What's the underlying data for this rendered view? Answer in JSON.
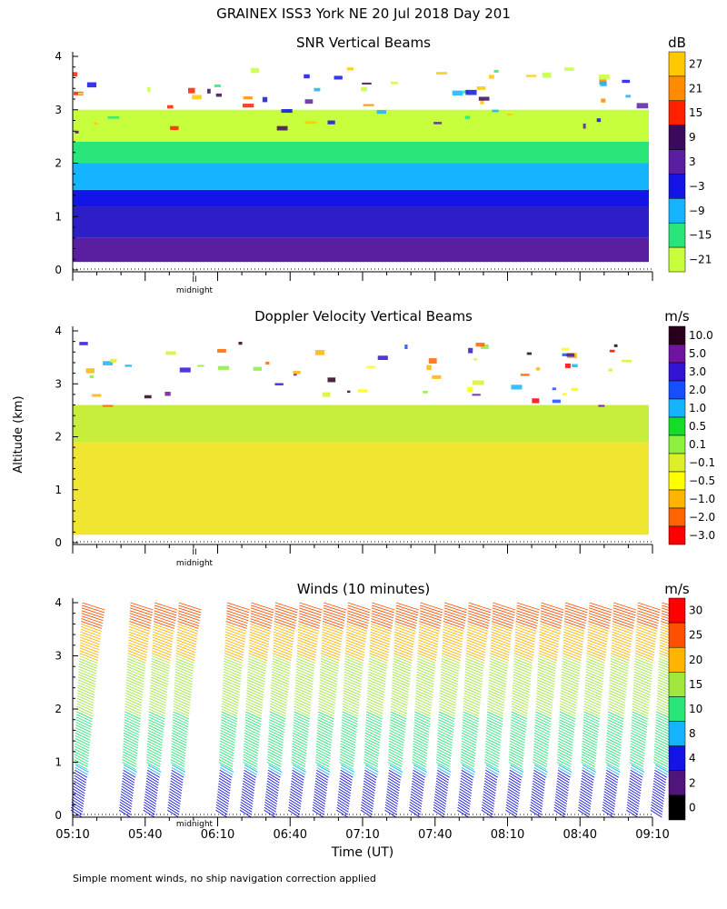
{
  "figure": {
    "title": "GRAINEX ISS3 York NE  20 Jul 2018 Day 201",
    "ylabel": "Altitude (km)",
    "xlabel": "Time (UT)",
    "footnote": "Simple moment winds, no ship navigation correction applied",
    "midnight_label": "midnight",
    "midnight_marker": "II"
  },
  "chart_data": [
    {
      "type": "heatmap",
      "title": "SNR Vertical Beams",
      "ylim": [
        0,
        4
      ],
      "y_ticks": [
        "0",
        "1",
        "2",
        "3",
        "4"
      ],
      "xlim": [
        "05:10",
        "09:10"
      ],
      "colorbar": {
        "unit": "dB",
        "labels": [
          "27",
          "21",
          "15",
          "9",
          "3",
          "−3",
          "−9",
          "−15",
          "−21"
        ],
        "colors": [
          "#ffc800",
          "#ff8c00",
          "#ff2000",
          "#3c0a5a",
          "#5a1ea0",
          "#1414e6",
          "#14b4ff",
          "#28e67a",
          "#c8ff3c"
        ]
      },
      "layers": [
        {
          "from_km": 0.15,
          "to_km": 0.6,
          "level": "9",
          "color": "#5a1ea0"
        },
        {
          "from_km": 0.6,
          "to_km": 1.2,
          "level": "3",
          "color": "#2d1ec8"
        },
        {
          "from_km": 1.2,
          "to_km": 1.5,
          "level": "-3",
          "color": "#1414e6"
        },
        {
          "from_km": 1.5,
          "to_km": 2.0,
          "level": "-9",
          "color": "#14b4ff"
        },
        {
          "from_km": 2.0,
          "to_km": 2.4,
          "level": "-15",
          "color": "#28e67a"
        },
        {
          "from_km": 2.4,
          "to_km": 3.0,
          "level": "-21",
          "color": "#c8ff3c"
        }
      ]
    },
    {
      "type": "heatmap",
      "title": "Doppler Velocity Vertical Beams",
      "ylim": [
        0,
        4
      ],
      "y_ticks": [
        "0",
        "1",
        "2",
        "3",
        "4"
      ],
      "xlim": [
        "05:10",
        "09:10"
      ],
      "colorbar": {
        "unit": "m/s",
        "labels": [
          "10.0",
          "5.0",
          "3.0",
          "2.0",
          "1.0",
          "0.5",
          "0.1",
          "−0.1",
          "−0.5",
          "−1.0",
          "−2.0",
          "−3.0"
        ],
        "colors": [
          "#28001e",
          "#6e14a0",
          "#3214d2",
          "#1450ff",
          "#14b4ff",
          "#14dc28",
          "#8cf03c",
          "#dcf028",
          "#ffff00",
          "#ffb400",
          "#ff6400",
          "#ff0000"
        ]
      },
      "layers": [
        {
          "from_km": 0.15,
          "to_km": 1.9,
          "level": "-0.1",
          "color": "#f0e632"
        },
        {
          "from_km": 1.9,
          "to_km": 2.6,
          "level": "0.1",
          "color": "#c8ee3c"
        }
      ]
    },
    {
      "type": "scatter",
      "title": "Winds (10 minutes)",
      "ylim": [
        0,
        4
      ],
      "y_ticks": [
        "0",
        "1",
        "2",
        "3",
        "4"
      ],
      "x_ticks": [
        "05:10",
        "05:40",
        "06:10",
        "06:40",
        "07:10",
        "07:40",
        "08:10",
        "08:40",
        "09:10"
      ],
      "colorbar": {
        "unit": "m/s",
        "labels": [
          "30",
          "25",
          "20",
          "15",
          "10",
          "8",
          "4",
          "2",
          "0"
        ],
        "colors": [
          "#ff0000",
          "#ff5000",
          "#ffb400",
          "#a0e63c",
          "#28e678",
          "#14b4ff",
          "#1414e6",
          "#50147a",
          "#000000"
        ]
      },
      "profiles_minutes": [
        2,
        22,
        32,
        42,
        62,
        72,
        82,
        92,
        102,
        112,
        122,
        132,
        142,
        152,
        162,
        172,
        182,
        192,
        202,
        212,
        222,
        232,
        242
      ],
      "speed_profile_m_s": [
        {
          "alt_km": 0.2,
          "speed": 5
        },
        {
          "alt_km": 0.8,
          "speed": 6
        },
        {
          "alt_km": 1.0,
          "speed": 10
        },
        {
          "alt_km": 2.0,
          "speed": 15
        },
        {
          "alt_km": 3.0,
          "speed": 20
        },
        {
          "alt_km": 3.6,
          "speed": 25
        },
        {
          "alt_km": 4.0,
          "speed": 30
        }
      ]
    }
  ]
}
